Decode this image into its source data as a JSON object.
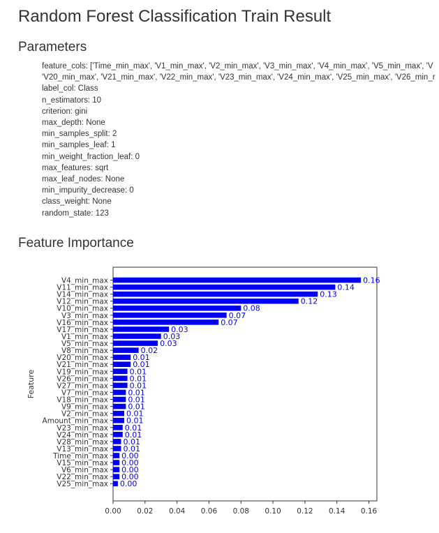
{
  "title": "Random Forest Classification Train Result",
  "sections": {
    "parameters": "Parameters",
    "feature_importance": "Feature Importance"
  },
  "parameters": [
    {
      "text": "feature_cols: ['Time_min_max', 'V1_min_max', 'V2_min_max', 'V3_min_max', 'V4_min_max', 'V5_min_max', 'V",
      "cont": "'V20_min_max', 'V21_min_max', 'V22_min_max', 'V23_min_max', 'V24_min_max', 'V25_min_max', 'V26_min_r"
    },
    {
      "text": "label_col: Class"
    },
    {
      "text": "n_estimators: 10"
    },
    {
      "text": "criterion: gini"
    },
    {
      "text": "max_depth: None"
    },
    {
      "text": "min_samples_split: 2"
    },
    {
      "text": "min_samples_leaf: 1"
    },
    {
      "text": "min_weight_fraction_leaf: 0"
    },
    {
      "text": "max_features: sqrt"
    },
    {
      "text": "max_leaf_nodes: None"
    },
    {
      "text": "min_impurity_decrease: 0"
    },
    {
      "text": "class_weight: None"
    },
    {
      "text": "random_state: 123"
    }
  ],
  "chart_data": {
    "type": "bar",
    "orientation": "horizontal",
    "ylabel": "Feature",
    "xlabel": "",
    "xlim": [
      0,
      0.165
    ],
    "xticks": [
      "0.00",
      "0.02",
      "0.04",
      "0.06",
      "0.08",
      "0.10",
      "0.12",
      "0.14",
      "0.16"
    ],
    "bar_color": "#0000ee",
    "label_color": "#0000ee",
    "categories": [
      "V4_min_max",
      "V11_min_max",
      "V14_min_max",
      "V12_min_max",
      "V10_min_max",
      "V3_min_max",
      "V16_min_max",
      "V17_min_max",
      "V1_min_max",
      "V5_min_max",
      "V8_min_max",
      "V20_min_max",
      "V21_min_max",
      "V19_min_max",
      "V26_min_max",
      "V27_min_max",
      "V7_min_max",
      "V18_min_max",
      "V9_min_max",
      "V2_min_max",
      "Amount_min_max",
      "V23_min_max",
      "V24_min_max",
      "V28_min_max",
      "V13_min_max",
      "Time_min_max",
      "V15_min_max",
      "V6_min_max",
      "V22_min_max",
      "V25_min_max"
    ],
    "values": [
      0.155,
      0.139,
      0.128,
      0.116,
      0.08,
      0.071,
      0.066,
      0.035,
      0.03,
      0.028,
      0.016,
      0.011,
      0.011,
      0.009,
      0.009,
      0.009,
      0.008,
      0.008,
      0.008,
      0.007,
      0.007,
      0.006,
      0.006,
      0.005,
      0.005,
      0.004,
      0.004,
      0.004,
      0.004,
      0.003
    ],
    "labels": [
      "0.16",
      "0.14",
      "0.13",
      "0.12",
      "0.08",
      "0.07",
      "0.07",
      "0.03",
      "0.03",
      "0.03",
      "0.02",
      "0.01",
      "0.01",
      "0.01",
      "0.01",
      "0.01",
      "0.01",
      "0.01",
      "0.01",
      "0.01",
      "0.01",
      "0.01",
      "0.01",
      "0.01",
      "0.01",
      "0.00",
      "0.00",
      "0.00",
      "0.00",
      "0.00"
    ]
  }
}
